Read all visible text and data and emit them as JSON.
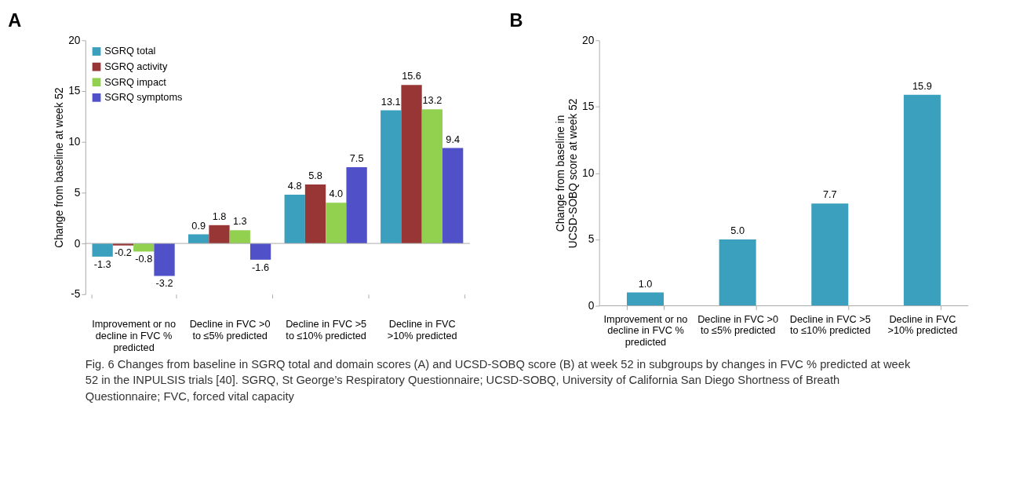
{
  "chart_data": [
    {
      "type": "bar",
      "title": "A",
      "ylabel": "Change from baseline at week 52",
      "categories": [
        "Improvement or no decline in FVC % predicted",
        "Decline in FVC >0 to ≤5% predicted",
        "Decline in FVC >5 to ≤10% predicted",
        "Decline in FVC >10% predicted"
      ],
      "series": [
        {
          "name": "SGRQ total",
          "color": "#3ba0bd",
          "values": [
            -1.3,
            0.9,
            4.8,
            13.1
          ],
          "value_labels": [
            "-1.3",
            "0.9",
            "4.8",
            "13.1"
          ]
        },
        {
          "name": "SGRQ activity",
          "color": "#983535",
          "values": [
            -0.2,
            1.8,
            5.8,
            15.6
          ],
          "value_labels": [
            "-0.2",
            "1.8",
            "5.8",
            "15.6"
          ]
        },
        {
          "name": "SGRQ impact",
          "color": "#92d050",
          "values": [
            -0.8,
            1.3,
            4.0,
            13.2
          ],
          "value_labels": [
            "-0.8",
            "1.3",
            "4.0",
            "13.2"
          ]
        },
        {
          "name": "SGRQ symptoms",
          "color": "#5050c8",
          "values": [
            -3.2,
            -1.6,
            7.5,
            9.4
          ],
          "value_labels": [
            "-3.2",
            "-1.6",
            "7.5",
            "9.4"
          ]
        }
      ],
      "ylim": [
        -5,
        20
      ],
      "yticks": [
        -5,
        0,
        5,
        10,
        15,
        20
      ],
      "legend": "top left",
      "annotations": [
        "Fig. 6 Changes from baseline in SGRQ total and domain scores (A) and UCSD-SOBQ score (B) at week 52 in subgroups by changes in FVC % predicted at week 52 in the INPULSIS trials [40]. SGRQ, St George’s Respiratory Questionnaire; UCSD-SOBQ, University of California San Diego Shortness of Breath Questionnaire; FVC, forced vital capacity"
      ]
    },
    {
      "type": "bar",
      "title": "B",
      "ylabel": "Change from baseline in UCSD-SOBQ score at week 52",
      "categories": [
        "Improvement or no decline in FVC % predicted",
        "Decline in FVC >0 to ≤5% predicted",
        "Decline in FVC >5 to ≤10% predicted",
        "Decline in FVC >10% predicted"
      ],
      "values": [
        1.0,
        5.0,
        7.7,
        15.9
      ],
      "value_labels": [
        "1.0",
        "5.0",
        "7.7",
        "15.9"
      ],
      "color": "#3ba0bd",
      "ylim": [
        0,
        20
      ],
      "yticks": [
        0,
        5,
        10,
        15,
        20
      ]
    }
  ]
}
